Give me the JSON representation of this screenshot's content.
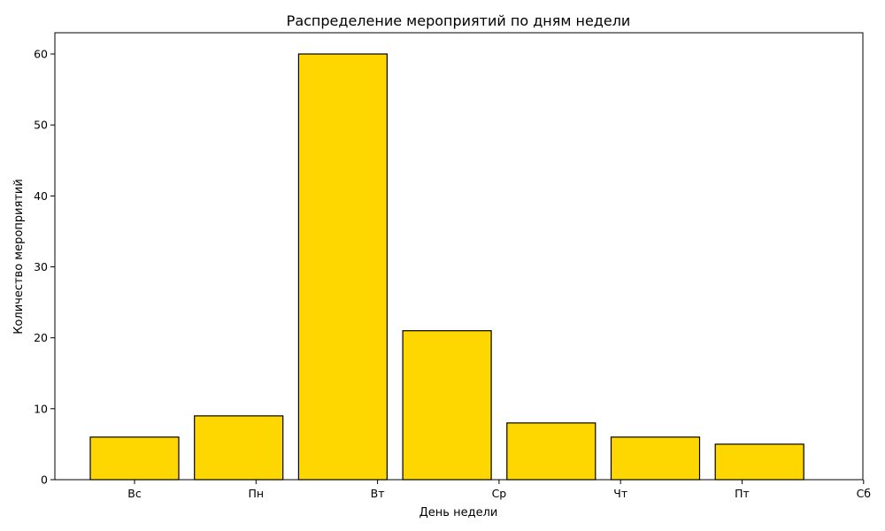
{
  "chart_data": {
    "type": "bar",
    "title": "Распределение мероприятий по дням недели",
    "xlabel": "День недели",
    "ylabel": "Количество мероприятий",
    "categories": [
      "Вс",
      "Пн",
      "Вт",
      "Ср",
      "Чт",
      "Пт",
      "Сб"
    ],
    "x_tick_labels": [
      "Вс",
      "Пн",
      "Вт",
      "Ср",
      "Чт",
      "Пт",
      "Сб"
    ],
    "values": [
      6,
      9,
      60,
      21,
      8,
      6,
      5
    ],
    "ylim": [
      0,
      63
    ],
    "y_ticks": [
      0,
      10,
      20,
      30,
      40,
      50,
      60
    ],
    "grid": false,
    "legend": "none",
    "colors": {
      "bar_fill": "#FFD700",
      "bar_edge": "#000000",
      "axis": "#000000",
      "background": "#ffffff"
    }
  }
}
